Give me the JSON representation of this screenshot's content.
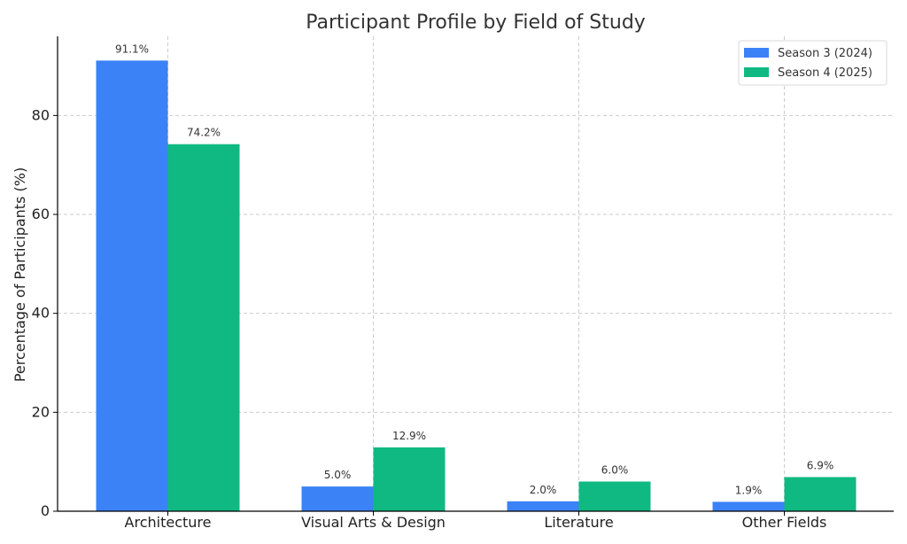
{
  "chart_data": {
    "type": "bar",
    "title": "Participant Profile by Field of Study",
    "xlabel": "",
    "ylabel": "Percentage of Participants (%)",
    "categories": [
      "Architecture",
      "Visual Arts & Design",
      "Literature",
      "Other Fields"
    ],
    "series": [
      {
        "name": "Season 3 (2024)",
        "values": [
          91.1,
          5.0,
          2.0,
          1.9
        ],
        "labels": [
          "91.1%",
          "5.0%",
          "2.0%",
          "1.9%"
        ],
        "color": "#3b82f6"
      },
      {
        "name": "Season 4 (2025)",
        "values": [
          74.2,
          12.9,
          6.0,
          6.9
        ],
        "labels": [
          "74.2%",
          "12.9%",
          "6.0%",
          "6.9%"
        ],
        "color": "#10b981"
      }
    ],
    "ylim": [
      0,
      96
    ],
    "yticks": [
      0,
      20,
      40,
      60,
      80
    ],
    "grid": true,
    "legend_position": "top-right"
  }
}
